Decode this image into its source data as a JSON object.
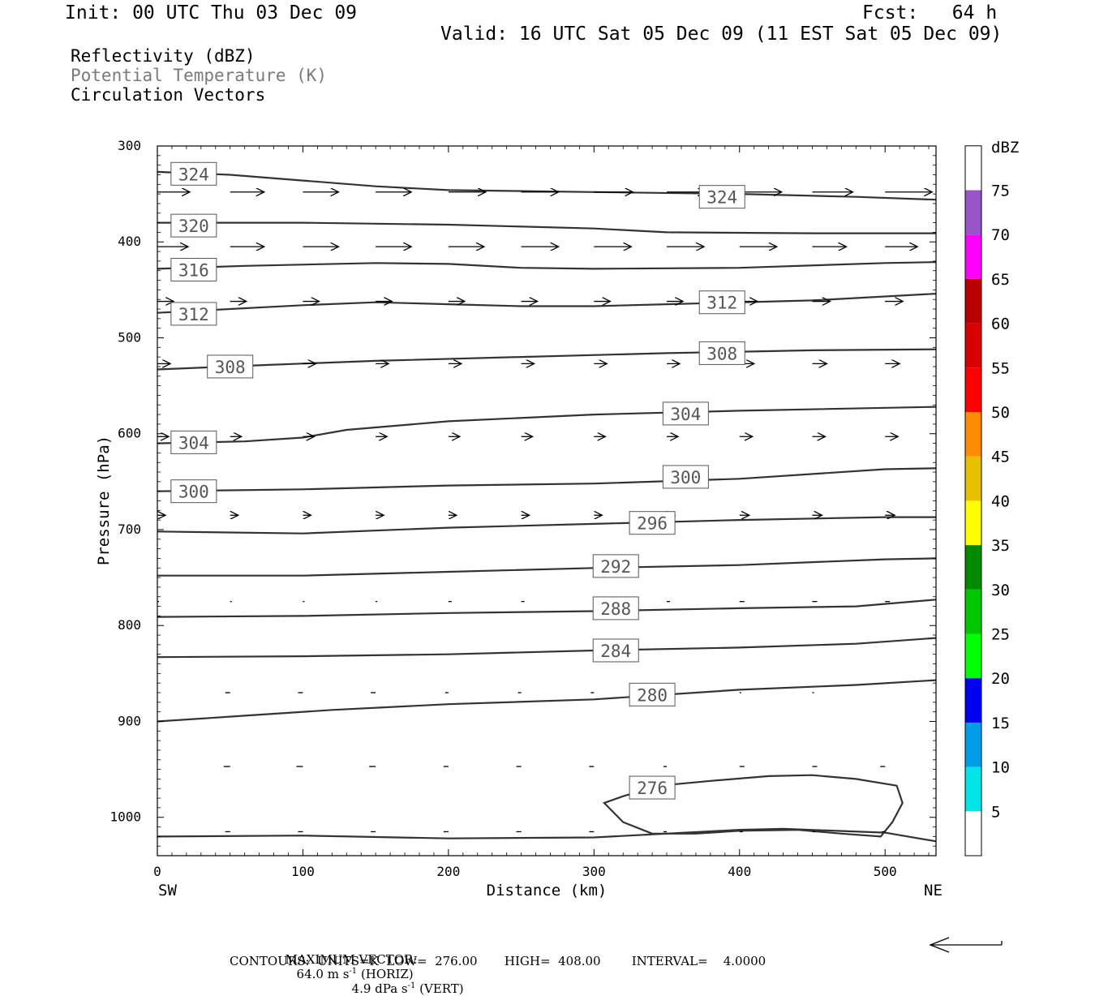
{
  "header": {
    "init": "Init: 00 UTC Thu 03 Dec 09",
    "fcst": "Fcst:   64 h",
    "valid": "Valid: 16 UTC Sat 05 Dec 09 (11 EST Sat 05 Dec 09)"
  },
  "legend": {
    "reflectivity": "Reflectivity (dBZ)",
    "theta": "Potential Temperature (K)",
    "vectors": "Circulation Vectors"
  },
  "footer": {
    "max_vector_label": "MAXIMUM VECTOR:",
    "max_vector_horiz_value": "64.0 m s",
    "max_vector_horiz_exp": "-1",
    "max_vector_horiz_tag": "(HORIZ)",
    "max_vector_vert_value": "4.9 dPa s",
    "max_vector_vert_exp": "-1",
    "max_vector_vert_tag": "(VERT)",
    "contours": "CONTOURS:  UNITS=K  LOW=  276.00       HIGH=  408.00        INTERVAL=    4.0000"
  },
  "colors": {
    "axis": "#000000",
    "contour": "#333333",
    "box_border": "#555555"
  },
  "chart_data": {
    "type": "line",
    "title": "Potential Temperature (K)",
    "xlabel": "Distance (km)",
    "ylabel": "Pressure (hPa)",
    "x_range": [
      0,
      535
    ],
    "y_range": [
      300,
      1040
    ],
    "y_inverted": true,
    "x_ticks": [
      0,
      100,
      200,
      300,
      400,
      500
    ],
    "y_ticks": [
      300,
      400,
      500,
      600,
      700,
      800,
      900,
      1000
    ],
    "x_end_labels": {
      "left": "SW",
      "right": "NE"
    },
    "colorbar": {
      "title": "dBZ",
      "levels": [
        5,
        10,
        15,
        20,
        25,
        30,
        35,
        40,
        45,
        50,
        55,
        60,
        65,
        70,
        75
      ],
      "colors": [
        "#ffffff",
        "#00e5e5",
        "#009ee8",
        "#0000f0",
        "#00ff00",
        "#00c800",
        "#008a00",
        "#ffff00",
        "#e8c000",
        "#ff8c00",
        "#ff0000",
        "#d80000",
        "#b80000",
        "#ff00ff",
        "#9955c8",
        "#ffffff"
      ]
    },
    "contours": [
      {
        "level": "324",
        "points": [
          [
            0,
            327
          ],
          [
            50,
            330
          ],
          [
            100,
            336
          ],
          [
            150,
            342
          ],
          [
            200,
            346
          ],
          [
            300,
            348
          ],
          [
            400,
            350
          ],
          [
            480,
            353
          ],
          [
            535,
            356
          ]
        ],
        "labels": [
          [
            25,
            329
          ],
          [
            388,
            353
          ]
        ]
      },
      {
        "level": "320",
        "points": [
          [
            0,
            380
          ],
          [
            100,
            380
          ],
          [
            200,
            382
          ],
          [
            300,
            386
          ],
          [
            350,
            390
          ],
          [
            450,
            391
          ],
          [
            535,
            391
          ]
        ],
        "labels": [
          [
            25,
            383
          ]
        ]
      },
      {
        "level": "316",
        "points": [
          [
            0,
            428
          ],
          [
            60,
            425
          ],
          [
            150,
            422
          ],
          [
            200,
            423
          ],
          [
            250,
            427
          ],
          [
            300,
            428
          ],
          [
            400,
            427
          ],
          [
            500,
            422
          ],
          [
            535,
            421
          ]
        ],
        "labels": [
          [
            25,
            429
          ]
        ]
      },
      {
        "level": "312",
        "points": [
          [
            0,
            474
          ],
          [
            50,
            470
          ],
          [
            100,
            466
          ],
          [
            150,
            463
          ],
          [
            200,
            465
          ],
          [
            250,
            467
          ],
          [
            300,
            467
          ],
          [
            350,
            465
          ],
          [
            450,
            461
          ],
          [
            535,
            454
          ]
        ],
        "labels": [
          [
            25,
            475
          ],
          [
            388,
            463
          ]
        ]
      },
      {
        "level": "308",
        "points": [
          [
            0,
            533
          ],
          [
            80,
            528
          ],
          [
            150,
            524
          ],
          [
            250,
            520
          ],
          [
            350,
            516
          ],
          [
            450,
            513
          ],
          [
            535,
            512
          ]
        ],
        "labels": [
          [
            50,
            530
          ],
          [
            388,
            516
          ]
        ]
      },
      {
        "level": "304",
        "points": [
          [
            0,
            610
          ],
          [
            60,
            608
          ],
          [
            100,
            604
          ],
          [
            130,
            596
          ],
          [
            200,
            587
          ],
          [
            300,
            580
          ],
          [
            400,
            576
          ],
          [
            535,
            572
          ]
        ],
        "labels": [
          [
            25,
            609
          ],
          [
            363,
            579
          ]
        ]
      },
      {
        "level": "300",
        "points": [
          [
            0,
            660
          ],
          [
            100,
            658
          ],
          [
            200,
            654
          ],
          [
            300,
            652
          ],
          [
            400,
            647
          ],
          [
            500,
            637
          ],
          [
            535,
            636
          ]
        ],
        "labels": [
          [
            25,
            660
          ],
          [
            363,
            645
          ]
        ]
      },
      {
        "level": "296",
        "points": [
          [
            0,
            702
          ],
          [
            100,
            704
          ],
          [
            200,
            698
          ],
          [
            300,
            694
          ],
          [
            400,
            690
          ],
          [
            500,
            687
          ],
          [
            535,
            687
          ]
        ],
        "labels": [
          [
            340,
            693
          ]
        ]
      },
      {
        "level": "292",
        "points": [
          [
            0,
            748
          ],
          [
            100,
            748
          ],
          [
            200,
            744
          ],
          [
            300,
            740
          ],
          [
            400,
            737
          ],
          [
            500,
            731
          ],
          [
            535,
            730
          ]
        ],
        "labels": [
          [
            315,
            738
          ]
        ]
      },
      {
        "level": "288",
        "points": [
          [
            0,
            791
          ],
          [
            100,
            790
          ],
          [
            200,
            787
          ],
          [
            300,
            785
          ],
          [
            400,
            782
          ],
          [
            480,
            780
          ],
          [
            535,
            773
          ]
        ],
        "labels": [
          [
            315,
            782
          ]
        ]
      },
      {
        "level": "284",
        "points": [
          [
            0,
            833
          ],
          [
            100,
            832
          ],
          [
            200,
            830
          ],
          [
            300,
            826
          ],
          [
            400,
            823
          ],
          [
            480,
            819
          ],
          [
            535,
            813
          ]
        ],
        "labels": [
          [
            315,
            826
          ]
        ]
      },
      {
        "level": "280",
        "points": [
          [
            0,
            900
          ],
          [
            60,
            894
          ],
          [
            120,
            888
          ],
          [
            200,
            882
          ],
          [
            300,
            877
          ],
          [
            400,
            867
          ],
          [
            480,
            862
          ],
          [
            535,
            857
          ]
        ],
        "labels": [
          [
            340,
            872
          ]
        ]
      },
      {
        "level": "276",
        "points": [
          [
            0,
            1020
          ],
          [
            100,
            1019
          ],
          [
            200,
            1022
          ],
          [
            300,
            1021
          ],
          [
            400,
            1013
          ],
          [
            430,
            1012
          ],
          [
            500,
            1016
          ],
          [
            535,
            1025
          ]
        ],
        "labels": []
      },
      {
        "level": "276",
        "closed": true,
        "points": [
          [
            340,
            1017
          ],
          [
            320,
            1005
          ],
          [
            307,
            985
          ],
          [
            320,
            978
          ],
          [
            345,
            967
          ],
          [
            380,
            962
          ],
          [
            420,
            957
          ],
          [
            450,
            956
          ],
          [
            480,
            960
          ],
          [
            508,
            967
          ],
          [
            512,
            985
          ],
          [
            505,
            1005
          ],
          [
            497,
            1020
          ],
          [
            470,
            1017
          ],
          [
            440,
            1013
          ],
          [
            400,
            1014
          ],
          [
            370,
            1017
          ],
          [
            340,
            1017
          ]
        ],
        "labels": [
          [
            340,
            969
          ]
        ]
      }
    ],
    "vector_rows": [
      {
        "pressure": 348,
        "x": [
          0,
          50,
          100,
          150,
          200,
          250,
          300,
          350,
          400,
          450,
          500
        ],
        "lengths": [
          40,
          42,
          44,
          44,
          46,
          46,
          48,
          48,
          52,
          50,
          58
        ]
      },
      {
        "pressure": 405,
        "x": [
          0,
          50,
          100,
          150,
          200,
          250,
          300,
          350,
          400,
          450,
          500
        ],
        "lengths": [
          38,
          42,
          44,
          44,
          44,
          46,
          46,
          46,
          46,
          42,
          40
        ]
      },
      {
        "pressure": 462,
        "x": [
          0,
          50,
          100,
          150,
          200,
          250,
          300,
          350,
          400,
          450,
          500
        ],
        "lengths": [
          20,
          20,
          20,
          20,
          20,
          20,
          20,
          20,
          22,
          22,
          22
        ]
      },
      {
        "pressure": 527,
        "x": [
          0,
          50,
          100,
          150,
          200,
          250,
          300,
          350,
          400,
          450,
          500
        ],
        "lengths": [
          16,
          16,
          16,
          16,
          16,
          16,
          16,
          16,
          18,
          18,
          18
        ]
      },
      {
        "pressure": 603,
        "x": [
          0,
          50,
          100,
          150,
          200,
          250,
          300,
          350,
          400,
          450,
          500
        ],
        "lengths": [
          14,
          14,
          14,
          14,
          14,
          14,
          14,
          14,
          16,
          16,
          16
        ]
      },
      {
        "pressure": 685,
        "x": [
          0,
          50,
          100,
          150,
          200,
          250,
          300,
          350,
          400,
          450,
          500
        ],
        "lengths": [
          10,
          10,
          10,
          10,
          10,
          10,
          10,
          10,
          12,
          12,
          12
        ]
      },
      {
        "pressure": 775,
        "x": [
          0,
          50,
          100,
          150,
          200,
          250,
          300,
          350,
          400,
          450,
          500
        ],
        "lengths": [
          2,
          2,
          2,
          2,
          4,
          4,
          4,
          4,
          6,
          6,
          6
        ]
      },
      {
        "pressure": 870,
        "x": [
          0,
          50,
          100,
          150,
          200,
          250,
          300,
          350,
          400,
          450,
          500
        ],
        "lengths": [
          0,
          -6,
          -6,
          -6,
          -4,
          -4,
          -4,
          -2,
          2,
          2,
          0
        ]
      },
      {
        "pressure": 947,
        "x": [
          0,
          50,
          100,
          150,
          200,
          250,
          300,
          350,
          400,
          450,
          500
        ],
        "lengths": [
          0,
          -8,
          -8,
          -8,
          -6,
          -6,
          -6,
          -4,
          6,
          6,
          -6
        ]
      },
      {
        "pressure": 1015,
        "x": [
          0,
          50,
          100,
          150,
          200,
          250,
          300,
          350,
          400,
          450,
          500
        ],
        "lengths": [
          0,
          -6,
          -6,
          -6,
          -6,
          -6,
          -6,
          -4,
          4,
          4,
          -4
        ]
      }
    ]
  }
}
